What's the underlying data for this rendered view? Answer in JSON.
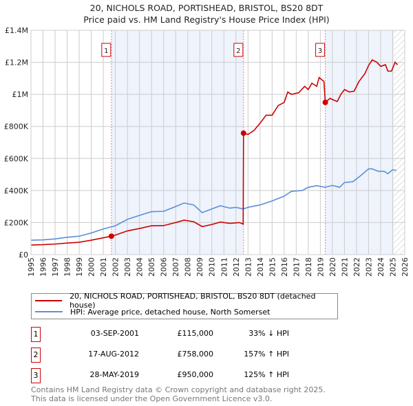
{
  "chart_data": {
    "type": "line",
    "title": "20, NICHOLS ROAD, PORTISHEAD, BRISTOL, BS20 8DT",
    "subtitle": "Price paid vs. HM Land Registry's House Price Index (HPI)",
    "xlim": [
      1995,
      2026
    ],
    "ylim": [
      0,
      1400000
    ],
    "x_ticks": [
      "1995",
      "1996",
      "1997",
      "1998",
      "1999",
      "2000",
      "2001",
      "2002",
      "2003",
      "2004",
      "2005",
      "2006",
      "2007",
      "2008",
      "2009",
      "2010",
      "2011",
      "2012",
      "2013",
      "2014",
      "2015",
      "2016",
      "2017",
      "2018",
      "2019",
      "2020",
      "2021",
      "2022",
      "2023",
      "2024",
      "2025",
      "2026"
    ],
    "y_ticks": [
      {
        "v": 0,
        "label": "£0"
      },
      {
        "v": 200000,
        "label": "£200K"
      },
      {
        "v": 400000,
        "label": "£400K"
      },
      {
        "v": 600000,
        "label": "£600K"
      },
      {
        "v": 800000,
        "label": "£800K"
      },
      {
        "v": 1000000,
        "label": "£1M"
      },
      {
        "v": 1200000,
        "label": "£1.2M"
      },
      {
        "v": 1400000,
        "label": "£1.4M"
      }
    ],
    "grid": true,
    "series": [
      {
        "name": "20, NICHOLS ROAD, PORTISHEAD, BRISTOL, BS20 8DT (detached house)",
        "color": "#cc0000",
        "x": [
          1995,
          1996,
          1997,
          1998,
          1999,
          2000,
          2001,
          2001.67,
          2002,
          2003,
          2004,
          2005,
          2006,
          2007,
          2007.7,
          2008.5,
          2009.2,
          2010,
          2010.7,
          2011.5,
          2012.3,
          2012.6,
          2012.63,
          2013,
          2013.5,
          2014,
          2014.5,
          2015,
          2015.5,
          2016,
          2016.3,
          2016.6,
          2017.2,
          2017.7,
          2018,
          2018.3,
          2018.7,
          2018.9,
          2019.3,
          2019.41,
          2019.8,
          2020.4,
          2020.7,
          2021,
          2021.4,
          2021.8,
          2022.2,
          2022.7,
          2023,
          2023.3,
          2023.7,
          2024,
          2024.4,
          2024.6,
          2024.9,
          2025.2,
          2025.4
        ],
        "y": [
          60000,
          62000,
          66000,
          72000,
          77000,
          90000,
          105000,
          115000,
          122000,
          148000,
          163000,
          180000,
          181000,
          200000,
          215000,
          205000,
          175000,
          188000,
          203000,
          195000,
          200000,
          190000,
          758000,
          750000,
          775000,
          820000,
          870000,
          870000,
          930000,
          950000,
          1015000,
          1000000,
          1010000,
          1050000,
          1030000,
          1070000,
          1050000,
          1105000,
          1080000,
          950000,
          975000,
          955000,
          1000000,
          1030000,
          1015000,
          1020000,
          1080000,
          1130000,
          1180000,
          1215000,
          1200000,
          1175000,
          1185000,
          1145000,
          1145000,
          1200000,
          1185000
        ]
      },
      {
        "name": "HPI: Average price, detached house, North Somerset",
        "color": "#5b8fd6",
        "x": [
          1995,
          1996,
          1997,
          1998,
          1999,
          2000,
          2001,
          2002,
          2003,
          2004,
          2005,
          2006,
          2007,
          2007.7,
          2008.5,
          2009.2,
          2010,
          2010.7,
          2011.5,
          2012,
          2012.6,
          2013,
          2014,
          2015,
          2016,
          2016.6,
          2017.5,
          2018,
          2018.7,
          2019.4,
          2020,
          2020.6,
          2021,
          2021.7,
          2022.3,
          2023,
          2023.3,
          2023.8,
          2024.3,
          2024.6,
          2025,
          2025.3
        ],
        "y": [
          90000,
          92000,
          98000,
          108000,
          115000,
          135000,
          160000,
          180000,
          220000,
          245000,
          268000,
          270000,
          300000,
          322000,
          310000,
          262000,
          285000,
          305000,
          290000,
          295000,
          285000,
          295000,
          310000,
          335000,
          365000,
          395000,
          400000,
          420000,
          430000,
          420000,
          432000,
          420000,
          450000,
          455000,
          490000,
          535000,
          535000,
          520000,
          520000,
          505000,
          530000,
          525000
        ]
      }
    ],
    "sales": [
      {
        "id": "1",
        "x": 2001.67,
        "price": 115000,
        "date": "03-SEP-2001",
        "price_label": "£115,000",
        "hpi": "33% ↓ HPI"
      },
      {
        "id": "2",
        "x": 2012.63,
        "price": 758000,
        "date": "17-AUG-2012",
        "price_label": "£758,000",
        "hpi": "157% ↑ HPI"
      },
      {
        "id": "3",
        "x": 2019.41,
        "price": 950000,
        "date": "28-MAY-2019",
        "price_label": "£950,000",
        "hpi": "125% ↑ HPI"
      }
    ],
    "shaded_ranges": [
      [
        2001.67,
        2012.63
      ],
      [
        2019.41,
        2025.1
      ]
    ],
    "hatched_from": 2025.1
  },
  "footer": {
    "line1": "Contains HM Land Registry data © Crown copyright and database right 2025.",
    "line2": "This data is licensed under the Open Government Licence v3.0."
  }
}
